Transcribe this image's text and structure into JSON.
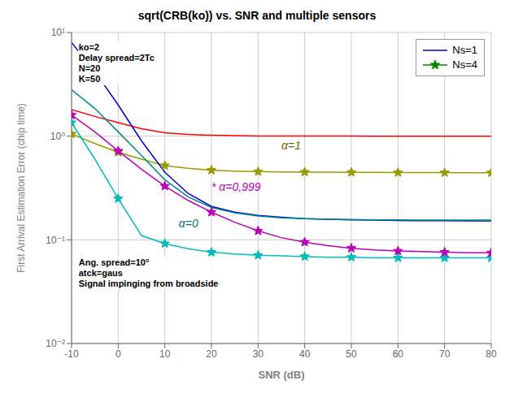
{
  "chart_data": {
    "type": "line",
    "title": "sqrt(CRB(ko)) vs. SNR and multiple sensors",
    "x_label": "SNR (dB)",
    "y_label": "First Arrival Estimation Error (chip time)",
    "x": [
      -10,
      -5,
      0,
      5,
      10,
      15,
      20,
      25,
      30,
      35,
      40,
      45,
      50,
      55,
      60,
      65,
      70,
      75,
      80
    ],
    "series": [
      {
        "color": "#FF0000",
        "line_style": "solid",
        "marker": "none",
        "values": [
          1.8,
          1.55,
          1.35,
          1.18,
          1.08,
          1.04,
          1.02,
          1.01,
          1.005,
          1.003,
          1.002,
          1.001,
          1.001,
          1.0,
          1.0,
          1.0,
          1.0,
          1.0,
          1.0
        ]
      },
      {
        "color": "#999900",
        "line_style": "solid",
        "marker": "star",
        "values": [
          1.05,
          0.85,
          0.7,
          0.6,
          0.52,
          0.49,
          0.47,
          0.46,
          0.455,
          0.452,
          0.45,
          0.449,
          0.448,
          0.447,
          0.446,
          0.445,
          0.445,
          0.444,
          0.444
        ]
      },
      {
        "color": "#0000CC",
        "line_style": "solid",
        "marker": "none",
        "values": [
          8.0,
          4.2,
          2.0,
          0.9,
          0.45,
          0.28,
          0.21,
          0.185,
          0.172,
          0.165,
          0.16,
          0.158,
          0.156,
          0.155,
          0.154,
          0.153,
          0.153,
          0.152,
          0.152
        ]
      },
      {
        "color": "#00BBBB",
        "line_style": "solid",
        "marker": "star",
        "values": [
          1.35,
          0.6,
          0.25,
          0.11,
          0.092,
          0.082,
          0.076,
          0.073,
          0.071,
          0.07,
          0.069,
          0.068,
          0.068,
          0.067,
          0.067,
          0.067,
          0.067,
          0.067,
          0.067
        ]
      },
      {
        "color": "#BB00BB",
        "line_style": "solid",
        "marker": "star",
        "values": [
          1.6,
          1.1,
          0.72,
          0.48,
          0.33,
          0.24,
          0.185,
          0.148,
          0.122,
          0.105,
          0.095,
          0.088,
          0.083,
          0.08,
          0.078,
          0.077,
          0.076,
          0.075,
          0.075
        ]
      },
      {
        "color": "#008888",
        "line_style": "solid",
        "marker": "none",
        "values": [
          2.8,
          1.85,
          1.1,
          0.65,
          0.38,
          0.26,
          0.205,
          0.182,
          0.17,
          0.163,
          0.16,
          0.158,
          0.157,
          0.156,
          0.156,
          0.155,
          0.155,
          0.155,
          0.155
        ]
      }
    ],
    "xlim": [
      -10,
      80
    ],
    "xticks": [
      -10,
      0,
      10,
      20,
      30,
      40,
      50,
      60,
      70,
      80
    ],
    "ylim": [
      0.01,
      10.0
    ],
    "yticks": [
      {
        "value": 0.01,
        "label": "10⁻²"
      },
      {
        "value": 0.1,
        "label": "10⁻¹"
      },
      {
        "value": 1,
        "label": "10⁰"
      },
      {
        "value": 10,
        "label": "10¹"
      }
    ],
    "log": "y",
    "grid": true,
    "legend": "upper right",
    "legend_items": [
      {
        "label": "Ns=1",
        "color": "#0000CC",
        "line_style": "solid",
        "marker": "none"
      },
      {
        "label": "Ns=4",
        "color": "#008800",
        "line_style": "solid",
        "marker": "star"
      }
    ],
    "annotations": [
      {
        "text": "α=1",
        "x": 35,
        "y": 0.75,
        "color": "#666600"
      },
      {
        "text": "* α=0,999",
        "x": 20,
        "y": 0.295,
        "color": "#BB00BB"
      },
      {
        "text": "α=0",
        "x": 13,
        "y": 0.133,
        "color": "#007777"
      }
    ],
    "text_boxes": [
      "ko=2\nDelay spread=2Tc\nN=20\nK=50",
      "Ang. spread=10°\natck=gaus\nSignal impinging from broadside"
    ]
  }
}
